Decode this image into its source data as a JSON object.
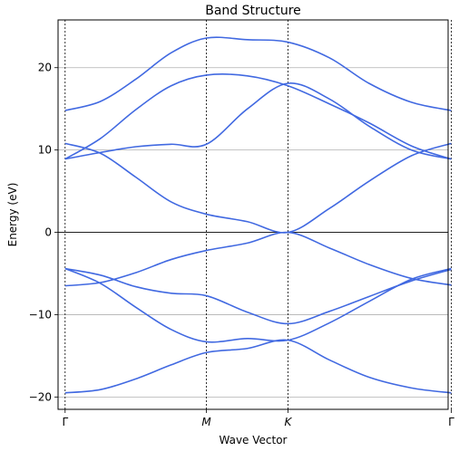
{
  "chart_data": {
    "type": "line",
    "title": "Band Structure",
    "xlabel": "Wave Vector",
    "ylabel": "Energy (eV)",
    "ylim": [
      -21.5,
      25.8
    ],
    "yticks": [
      -20,
      -10,
      0,
      10,
      20
    ],
    "xlim": [
      -0.05,
      2.71
    ],
    "kpoints": [
      {
        "label": "Γ",
        "x": 0.0,
        "italic": false
      },
      {
        "label": "M",
        "x": 1.0,
        "italic": true
      },
      {
        "label": "K",
        "x": 1.577,
        "italic": true
      },
      {
        "label": "Γ",
        "x": 2.732,
        "italic": false
      }
    ],
    "hlines": [
      0
    ],
    "grid": true,
    "colors": {
      "band": "#4169e1",
      "grid": "#b0b0b0",
      "kline": "#000000"
    },
    "series": [
      {
        "values": [
          [
            0,
            -19.5
          ],
          [
            0.25,
            -19.1
          ],
          [
            0.5,
            -17.8
          ],
          [
            0.75,
            -16.1
          ],
          [
            1.0,
            -14.6
          ],
          [
            1.29,
            -14.1
          ],
          [
            1.577,
            -13.1
          ],
          [
            1.87,
            -15.5
          ],
          [
            2.15,
            -17.6
          ],
          [
            2.45,
            -18.9
          ],
          [
            2.732,
            -19.5
          ]
        ]
      },
      {
        "values": [
          [
            0,
            -6.5
          ],
          [
            0.25,
            -6.1
          ],
          [
            0.5,
            -4.9
          ],
          [
            0.75,
            -3.3
          ],
          [
            1.0,
            -2.2
          ],
          [
            1.29,
            -1.3
          ],
          [
            1.577,
            0.0
          ],
          [
            1.87,
            -1.9
          ],
          [
            2.15,
            -3.9
          ],
          [
            2.45,
            -5.6
          ],
          [
            2.732,
            -6.4
          ]
        ]
      },
      {
        "values": [
          [
            0,
            -4.4
          ],
          [
            0.25,
            -5.2
          ],
          [
            0.5,
            -6.6
          ],
          [
            0.75,
            -7.4
          ],
          [
            1.0,
            -7.7
          ],
          [
            1.29,
            -9.7
          ],
          [
            1.577,
            -11.1
          ],
          [
            1.87,
            -9.6
          ],
          [
            2.15,
            -7.8
          ],
          [
            2.45,
            -5.9
          ],
          [
            2.732,
            -4.5
          ]
        ]
      },
      {
        "values": [
          [
            0,
            -4.4
          ],
          [
            0.25,
            -6.2
          ],
          [
            0.5,
            -9.1
          ],
          [
            0.75,
            -11.8
          ],
          [
            1.0,
            -13.3
          ],
          [
            1.29,
            -12.9
          ],
          [
            1.577,
            -13.1
          ],
          [
            1.87,
            -11.0
          ],
          [
            2.15,
            -8.4
          ],
          [
            2.45,
            -5.7
          ],
          [
            2.732,
            -4.4
          ]
        ]
      },
      {
        "values": [
          [
            0,
            8.9
          ],
          [
            0.25,
            9.7
          ],
          [
            0.5,
            10.4
          ],
          [
            0.75,
            10.7
          ],
          [
            1.0,
            10.7
          ],
          [
            1.29,
            15.0
          ],
          [
            1.577,
            18.1
          ],
          [
            1.87,
            16.2
          ],
          [
            2.15,
            12.9
          ],
          [
            2.45,
            10.0
          ],
          [
            2.732,
            8.9
          ]
        ]
      },
      {
        "values": [
          [
            0,
            10.8
          ],
          [
            0.25,
            9.6
          ],
          [
            0.5,
            6.7
          ],
          [
            0.75,
            3.7
          ],
          [
            1.0,
            2.2
          ],
          [
            1.29,
            1.3
          ],
          [
            1.577,
            0.0
          ],
          [
            1.87,
            2.9
          ],
          [
            2.15,
            6.2
          ],
          [
            2.45,
            9.3
          ],
          [
            2.732,
            10.8
          ]
        ]
      },
      {
        "values": [
          [
            0,
            8.9
          ],
          [
            0.25,
            11.4
          ],
          [
            0.5,
            14.9
          ],
          [
            0.75,
            17.8
          ],
          [
            1.0,
            19.1
          ],
          [
            1.29,
            19.0
          ],
          [
            1.577,
            17.8
          ],
          [
            1.87,
            15.6
          ],
          [
            2.15,
            13.3
          ],
          [
            2.45,
            10.5
          ],
          [
            2.732,
            8.9
          ]
        ]
      },
      {
        "values": [
          [
            0,
            14.8
          ],
          [
            0.25,
            15.9
          ],
          [
            0.5,
            18.6
          ],
          [
            0.75,
            21.8
          ],
          [
            1.0,
            23.6
          ],
          [
            1.29,
            23.4
          ],
          [
            1.577,
            23.1
          ],
          [
            1.87,
            21.2
          ],
          [
            2.15,
            18.1
          ],
          [
            2.45,
            15.8
          ],
          [
            2.732,
            14.8
          ]
        ]
      }
    ]
  }
}
